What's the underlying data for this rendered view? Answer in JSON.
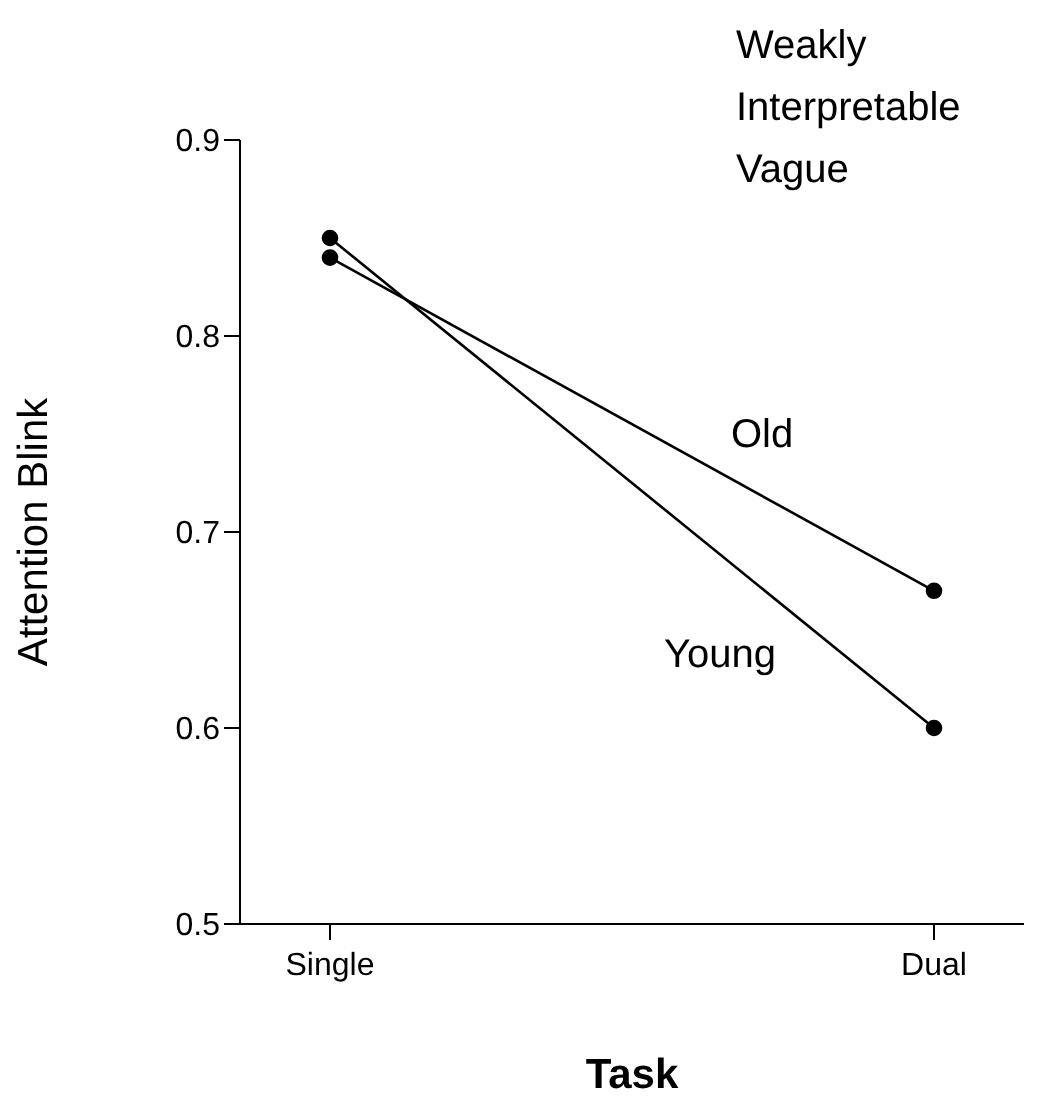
{
  "chart_data": {
    "type": "line",
    "xlabel": "Task",
    "ylabel": "Attention Blink",
    "categories": [
      "Single",
      "Dual"
    ],
    "series": [
      {
        "name": "Old",
        "color": "#000000",
        "values": [
          0.84,
          0.67
        ]
      },
      {
        "name": "Young",
        "color": "#000000",
        "values": [
          0.85,
          0.6
        ]
      }
    ],
    "ylim": [
      0.5,
      0.9
    ],
    "yticks": [
      0.5,
      0.6,
      0.7,
      0.8,
      0.9
    ],
    "marker": "circle",
    "line_style": "solid",
    "grid": false,
    "legend": false,
    "annotations": [
      "Weakly",
      "Interpretable",
      "Vague"
    ]
  }
}
